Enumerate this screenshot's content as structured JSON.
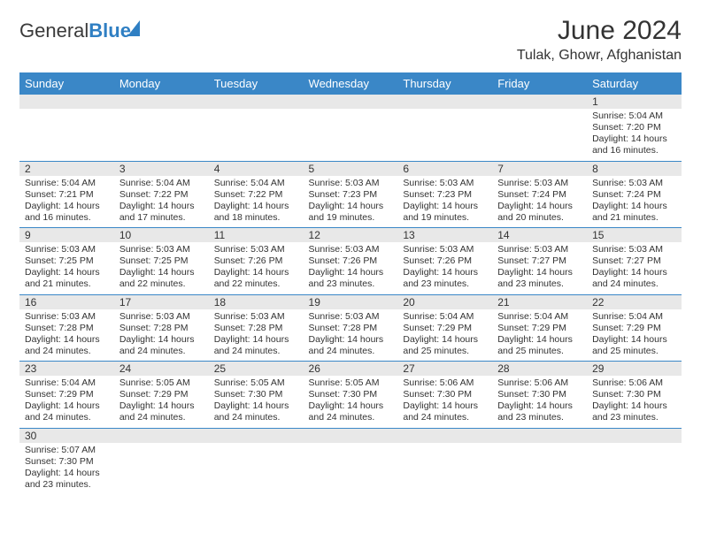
{
  "brand": {
    "name1": "General",
    "name2": "Blue"
  },
  "title": "June 2024",
  "location": "Tulak, Ghowr, Afghanistan",
  "day_headers": [
    "Sunday",
    "Monday",
    "Tuesday",
    "Wednesday",
    "Thursday",
    "Friday",
    "Saturday"
  ],
  "colors": {
    "header_bg": "#3a87c7",
    "header_text": "#ffffff",
    "daynum_bg": "#e8e8e8",
    "border": "#3a87c7",
    "logo_blue": "#2f7fc3"
  },
  "weeks": [
    [
      {
        "day": "",
        "lines": []
      },
      {
        "day": "",
        "lines": []
      },
      {
        "day": "",
        "lines": []
      },
      {
        "day": "",
        "lines": []
      },
      {
        "day": "",
        "lines": []
      },
      {
        "day": "",
        "lines": []
      },
      {
        "day": "1",
        "lines": [
          "Sunrise: 5:04 AM",
          "Sunset: 7:20 PM",
          "Daylight: 14 hours and 16 minutes."
        ]
      }
    ],
    [
      {
        "day": "2",
        "lines": [
          "Sunrise: 5:04 AM",
          "Sunset: 7:21 PM",
          "Daylight: 14 hours and 16 minutes."
        ]
      },
      {
        "day": "3",
        "lines": [
          "Sunrise: 5:04 AM",
          "Sunset: 7:22 PM",
          "Daylight: 14 hours and 17 minutes."
        ]
      },
      {
        "day": "4",
        "lines": [
          "Sunrise: 5:04 AM",
          "Sunset: 7:22 PM",
          "Daylight: 14 hours and 18 minutes."
        ]
      },
      {
        "day": "5",
        "lines": [
          "Sunrise: 5:03 AM",
          "Sunset: 7:23 PM",
          "Daylight: 14 hours and 19 minutes."
        ]
      },
      {
        "day": "6",
        "lines": [
          "Sunrise: 5:03 AM",
          "Sunset: 7:23 PM",
          "Daylight: 14 hours and 19 minutes."
        ]
      },
      {
        "day": "7",
        "lines": [
          "Sunrise: 5:03 AM",
          "Sunset: 7:24 PM",
          "Daylight: 14 hours and 20 minutes."
        ]
      },
      {
        "day": "8",
        "lines": [
          "Sunrise: 5:03 AM",
          "Sunset: 7:24 PM",
          "Daylight: 14 hours and 21 minutes."
        ]
      }
    ],
    [
      {
        "day": "9",
        "lines": [
          "Sunrise: 5:03 AM",
          "Sunset: 7:25 PM",
          "Daylight: 14 hours and 21 minutes."
        ]
      },
      {
        "day": "10",
        "lines": [
          "Sunrise: 5:03 AM",
          "Sunset: 7:25 PM",
          "Daylight: 14 hours and 22 minutes."
        ]
      },
      {
        "day": "11",
        "lines": [
          "Sunrise: 5:03 AM",
          "Sunset: 7:26 PM",
          "Daylight: 14 hours and 22 minutes."
        ]
      },
      {
        "day": "12",
        "lines": [
          "Sunrise: 5:03 AM",
          "Sunset: 7:26 PM",
          "Daylight: 14 hours and 23 minutes."
        ]
      },
      {
        "day": "13",
        "lines": [
          "Sunrise: 5:03 AM",
          "Sunset: 7:26 PM",
          "Daylight: 14 hours and 23 minutes."
        ]
      },
      {
        "day": "14",
        "lines": [
          "Sunrise: 5:03 AM",
          "Sunset: 7:27 PM",
          "Daylight: 14 hours and 23 minutes."
        ]
      },
      {
        "day": "15",
        "lines": [
          "Sunrise: 5:03 AM",
          "Sunset: 7:27 PM",
          "Daylight: 14 hours and 24 minutes."
        ]
      }
    ],
    [
      {
        "day": "16",
        "lines": [
          "Sunrise: 5:03 AM",
          "Sunset: 7:28 PM",
          "Daylight: 14 hours and 24 minutes."
        ]
      },
      {
        "day": "17",
        "lines": [
          "Sunrise: 5:03 AM",
          "Sunset: 7:28 PM",
          "Daylight: 14 hours and 24 minutes."
        ]
      },
      {
        "day": "18",
        "lines": [
          "Sunrise: 5:03 AM",
          "Sunset: 7:28 PM",
          "Daylight: 14 hours and 24 minutes."
        ]
      },
      {
        "day": "19",
        "lines": [
          "Sunrise: 5:03 AM",
          "Sunset: 7:28 PM",
          "Daylight: 14 hours and 24 minutes."
        ]
      },
      {
        "day": "20",
        "lines": [
          "Sunrise: 5:04 AM",
          "Sunset: 7:29 PM",
          "Daylight: 14 hours and 25 minutes."
        ]
      },
      {
        "day": "21",
        "lines": [
          "Sunrise: 5:04 AM",
          "Sunset: 7:29 PM",
          "Daylight: 14 hours and 25 minutes."
        ]
      },
      {
        "day": "22",
        "lines": [
          "Sunrise: 5:04 AM",
          "Sunset: 7:29 PM",
          "Daylight: 14 hours and 25 minutes."
        ]
      }
    ],
    [
      {
        "day": "23",
        "lines": [
          "Sunrise: 5:04 AM",
          "Sunset: 7:29 PM",
          "Daylight: 14 hours and 24 minutes."
        ]
      },
      {
        "day": "24",
        "lines": [
          "Sunrise: 5:05 AM",
          "Sunset: 7:29 PM",
          "Daylight: 14 hours and 24 minutes."
        ]
      },
      {
        "day": "25",
        "lines": [
          "Sunrise: 5:05 AM",
          "Sunset: 7:30 PM",
          "Daylight: 14 hours and 24 minutes."
        ]
      },
      {
        "day": "26",
        "lines": [
          "Sunrise: 5:05 AM",
          "Sunset: 7:30 PM",
          "Daylight: 14 hours and 24 minutes."
        ]
      },
      {
        "day": "27",
        "lines": [
          "Sunrise: 5:06 AM",
          "Sunset: 7:30 PM",
          "Daylight: 14 hours and 24 minutes."
        ]
      },
      {
        "day": "28",
        "lines": [
          "Sunrise: 5:06 AM",
          "Sunset: 7:30 PM",
          "Daylight: 14 hours and 23 minutes."
        ]
      },
      {
        "day": "29",
        "lines": [
          "Sunrise: 5:06 AM",
          "Sunset: 7:30 PM",
          "Daylight: 14 hours and 23 minutes."
        ]
      }
    ],
    [
      {
        "day": "30",
        "lines": [
          "Sunrise: 5:07 AM",
          "Sunset: 7:30 PM",
          "Daylight: 14 hours and 23 minutes."
        ]
      },
      {
        "day": "",
        "lines": []
      },
      {
        "day": "",
        "lines": []
      },
      {
        "day": "",
        "lines": []
      },
      {
        "day": "",
        "lines": []
      },
      {
        "day": "",
        "lines": []
      },
      {
        "day": "",
        "lines": []
      }
    ]
  ]
}
